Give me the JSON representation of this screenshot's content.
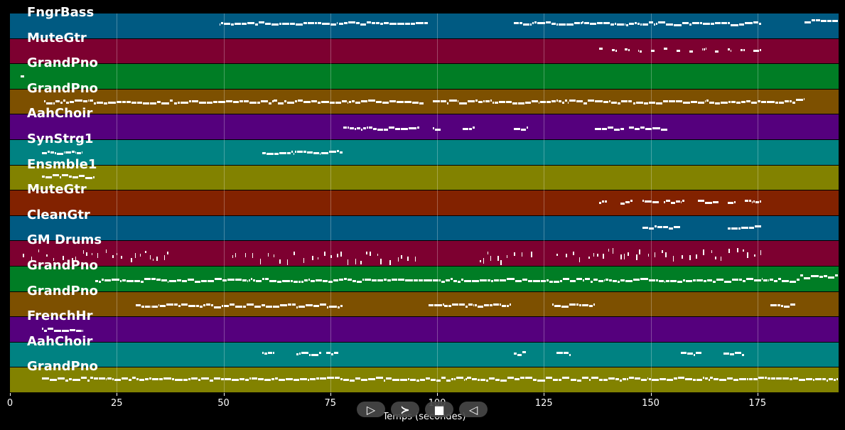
{
  "xaxis": {
    "label": "Temps (secondes)",
    "min": 0,
    "max": 194,
    "ticks": [
      "0",
      "25",
      "50",
      "75",
      "100",
      "125",
      "150",
      "175"
    ]
  },
  "tracks": [
    {
      "label": "FngrBass",
      "color": "#005a82",
      "notes": [
        [
          49,
          98,
          0.4
        ],
        [
          118,
          176,
          0.4
        ],
        [
          186,
          194,
          0.3
        ]
      ]
    },
    {
      "label": "MuteGtr",
      "color": "#7d0030",
      "notes": [
        [
          138,
          139,
          0.45
        ],
        [
          141,
          142,
          0.45
        ],
        [
          144,
          145,
          0.45
        ],
        [
          147,
          148,
          0.45
        ],
        [
          150,
          151,
          0.45
        ],
        [
          153,
          154,
          0.45
        ],
        [
          156,
          157,
          0.45
        ],
        [
          159,
          160,
          0.45
        ],
        [
          162,
          163,
          0.45
        ],
        [
          165,
          166,
          0.45
        ],
        [
          168,
          169,
          0.45
        ],
        [
          171,
          172,
          0.45
        ],
        [
          174,
          176,
          0.45
        ]
      ]
    },
    {
      "label": "GrandPno",
      "color": "#007d25",
      "notes": [
        [
          2.5,
          3.3,
          0.5
        ]
      ]
    },
    {
      "label": "GrandPno",
      "color": "#7d5000",
      "notes": [
        [
          8,
          40,
          0.5
        ],
        [
          40,
          97,
          0.5
        ],
        [
          99,
          184,
          0.5
        ],
        [
          184,
          186,
          0.4
        ]
      ]
    },
    {
      "label": "AahChoir",
      "color": "#55007d",
      "notes": [
        [
          78,
          86,
          0.55
        ],
        [
          86,
          96,
          0.55
        ],
        [
          99,
          101,
          0.55
        ],
        [
          106,
          109,
          0.55
        ],
        [
          118,
          121,
          0.55
        ],
        [
          137,
          144,
          0.55
        ],
        [
          145,
          154,
          0.55
        ]
      ]
    },
    {
      "label": "SynStrg1",
      "color": "#008282",
      "notes": [
        [
          7.5,
          17,
          0.5
        ],
        [
          59,
          78,
          0.5
        ]
      ]
    },
    {
      "label": "Ensmble1",
      "color": "#828200",
      "notes": [
        [
          7.5,
          20,
          0.45
        ]
      ]
    },
    {
      "label": "MuteGtr",
      "color": "#822200",
      "notes": [
        [
          138,
          140,
          0.45
        ],
        [
          143,
          146,
          0.45
        ],
        [
          148,
          152,
          0.45
        ],
        [
          153,
          158,
          0.45
        ],
        [
          161,
          166,
          0.45
        ],
        [
          168,
          170,
          0.45
        ],
        [
          172,
          176,
          0.45
        ]
      ]
    },
    {
      "label": "CleanGtr",
      "color": "#005a82",
      "notes": [
        [
          148,
          157,
          0.45
        ],
        [
          168,
          176,
          0.45
        ]
      ]
    },
    {
      "label": "GM Drums",
      "color": "#7d0030",
      "notes": [
        [
          3,
          37,
          0.55
        ],
        [
          52,
          96,
          0.65
        ],
        [
          110,
          122,
          0.65
        ],
        [
          128,
          176,
          0.5
        ]
      ]
    },
    {
      "label": "GrandPno",
      "color": "#007d25",
      "notes": [
        [
          20,
          185,
          0.55
        ],
        [
          185,
          194,
          0.4
        ]
      ]
    },
    {
      "label": "GrandPno",
      "color": "#7d5000",
      "notes": [
        [
          29.5,
          78,
          0.55
        ],
        [
          98,
          117,
          0.55
        ],
        [
          127,
          137,
          0.55
        ],
        [
          178,
          184,
          0.55
        ]
      ]
    },
    {
      "label": "FrenchHr",
      "color": "#55007d",
      "notes": [
        [
          7.5,
          17,
          0.5
        ]
      ]
    },
    {
      "label": "AahChoir",
      "color": "#008282",
      "notes": [
        [
          59,
          62,
          0.45
        ],
        [
          67,
          73,
          0.45
        ],
        [
          74,
          77,
          0.45
        ],
        [
          118,
          121,
          0.45
        ],
        [
          128,
          131,
          0.45
        ],
        [
          157,
          162,
          0.45
        ],
        [
          167,
          172,
          0.45
        ]
      ]
    },
    {
      "label": "GrandPno",
      "color": "#828200",
      "notes": [
        [
          7.5,
          194,
          0.45
        ]
      ]
    }
  ],
  "controls": [
    {
      "name": "play-button",
      "glyph": "▷"
    },
    {
      "name": "forward-button",
      "glyph": "≻"
    },
    {
      "name": "stop-button",
      "glyph": "■"
    },
    {
      "name": "rewind-button",
      "glyph": "◁"
    }
  ]
}
